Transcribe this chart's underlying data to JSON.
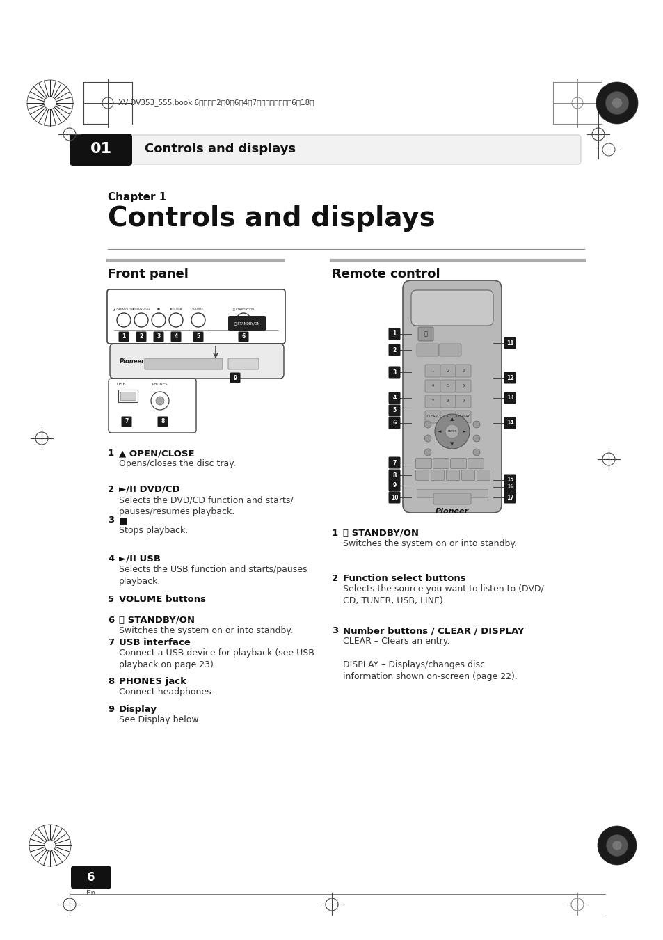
{
  "bg_color": "#ffffff",
  "page_title": "01",
  "chapter_label": "Chapter 1",
  "chapter_title": "Controls and displays",
  "section_left": "Front panel",
  "section_right": "Remote control",
  "header_bar_text": "Controls and displays",
  "meta_text": "XV-DV353_555.book 6ページ　2　0　6年4月7日　金曜日　午後6時18分",
  "page_number": "6",
  "fp_items": [
    {
      "num": "1",
      "title": "▲ OPEN/CLOSE",
      "bold_title": true,
      "desc": "Opens/closes the disc tray."
    },
    {
      "num": "2",
      "title": "►/II DVD/CD",
      "bold_title": true,
      "desc": "Selects the DVD/CD function and starts/\npauses/resumes playback.",
      "bold_desc_words": [
        "DVD/CD"
      ]
    },
    {
      "num": "3",
      "title": "■",
      "bold_title": true,
      "desc": "Stops playback."
    },
    {
      "num": "4",
      "title": "►/II USB",
      "bold_title": true,
      "desc": "Selects the USB function and starts/pauses\nplayback.",
      "bold_desc_words": [
        "USB"
      ]
    },
    {
      "num": "5",
      "title": "VOLUME buttons",
      "bold_title": true,
      "desc": ""
    },
    {
      "num": "6",
      "title": "⏻ STANDBY/ON",
      "bold_title": true,
      "desc": "Switches the system on or into standby."
    },
    {
      "num": "7",
      "title": "USB interface",
      "bold_title": true,
      "desc": "Connect a USB device for playback (see USB\nplayback on page 23)."
    },
    {
      "num": "8",
      "title": "PHONES jack",
      "bold_title": true,
      "desc": "Connect headphones."
    },
    {
      "num": "9",
      "title": "Display",
      "bold_title": true,
      "desc": "See Display below."
    }
  ],
  "rc_items": [
    {
      "num": "1",
      "title": "⏻ STANDBY/ON",
      "bold_title": true,
      "desc": "Switches the system on or into standby."
    },
    {
      "num": "2",
      "title": "Function select buttons",
      "bold_title": true,
      "desc": "Selects the source you want to listen to (DVD/\nCD, TUNER, USB, LINE)."
    },
    {
      "num": "3",
      "title": "Number buttons / CLEAR / DISPLAY",
      "bold_title": true,
      "desc": "CLEAR – Clears an entry.\n\nDISPLAY – Displays/changes disc\ninformation shown on-screen (page 22)."
    }
  ]
}
